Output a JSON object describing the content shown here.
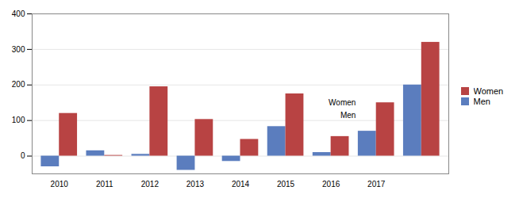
{
  "chart_data": {
    "type": "bar",
    "categories": [
      "2010",
      "2011",
      "2012",
      "2013",
      "2014",
      "2015",
      "2016",
      "2017",
      null
    ],
    "series": [
      {
        "name": "Men",
        "color": "#5b7dbe",
        "values": [
          -30,
          15,
          5,
          -40,
          -15,
          83,
          10,
          70,
          200
        ]
      },
      {
        "name": "Women",
        "color": "#b84343",
        "values": [
          120,
          2,
          195,
          103,
          47,
          175,
          55,
          150,
          320
        ]
      }
    ],
    "ylim": [
      -50,
      400
    ],
    "yticks": [
      0,
      100,
      200,
      300,
      400
    ],
    "grid": true,
    "legend": "right",
    "annotations": [
      {
        "text": "Women",
        "x": "2017",
        "y": 150
      },
      {
        "text": "Men",
        "x": "2017",
        "y": 115
      }
    ]
  }
}
